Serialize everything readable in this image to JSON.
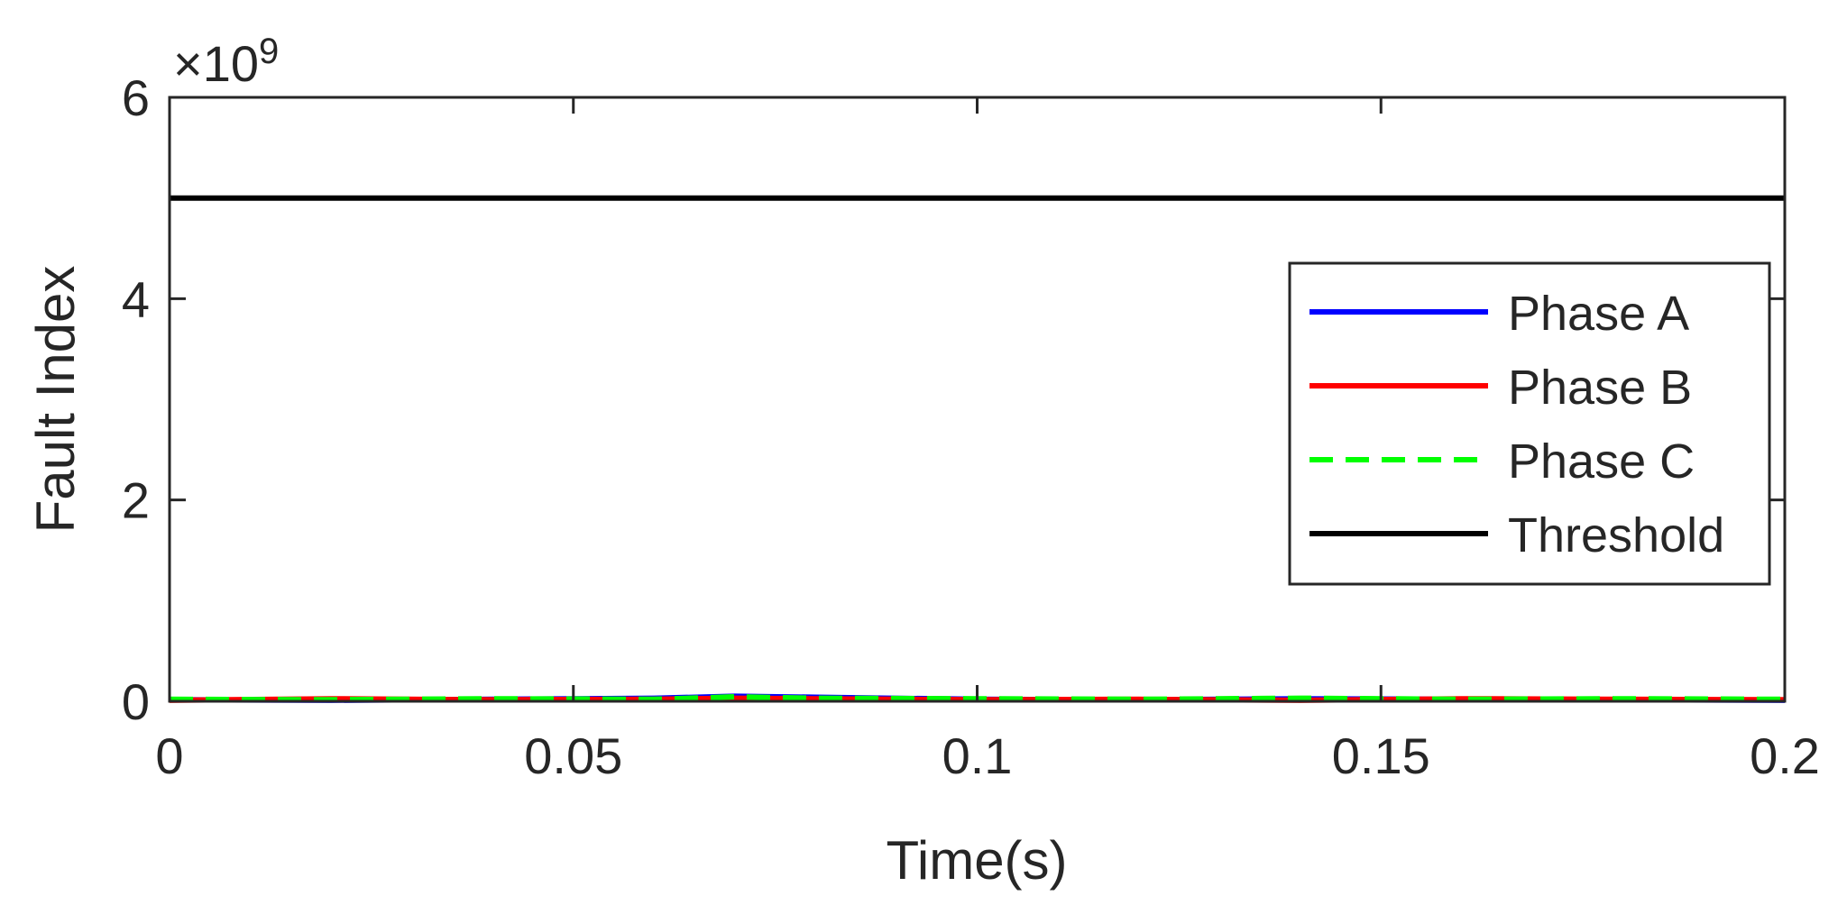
{
  "chart_data": {
    "type": "line",
    "xlabel": "Time(s)",
    "ylabel": "Fault Index",
    "xlim": [
      0,
      0.2
    ],
    "ylim": [
      0,
      6000000000
    ],
    "y_exponent_label": "×10",
    "y_exponent_power": "9",
    "x_ticks": [
      0,
      0.05,
      0.1,
      0.15,
      0.2
    ],
    "x_tick_labels": [
      "0",
      "0.05",
      "0.1",
      "0.15",
      "0.2"
    ],
    "y_ticks": [
      0,
      2000000000,
      4000000000,
      6000000000
    ],
    "y_tick_labels": [
      "0",
      "2",
      "4",
      "6"
    ],
    "grid": false,
    "legend_position": "right-middle",
    "series": [
      {
        "name": "Phase A",
        "color": "#0000ff",
        "style": "solid",
        "x": [
          0,
          0.02,
          0.04,
          0.06,
          0.07,
          0.08,
          0.1,
          0.12,
          0.14,
          0.16,
          0.18,
          0.2
        ],
        "y": [
          15000000,
          10000000,
          20000000,
          30000000,
          50000000,
          40000000,
          20000000,
          15000000,
          25000000,
          20000000,
          15000000,
          10000000
        ]
      },
      {
        "name": "Phase B",
        "color": "#ff0000",
        "style": "solid",
        "x": [
          0,
          0.02,
          0.04,
          0.06,
          0.07,
          0.08,
          0.1,
          0.12,
          0.14,
          0.16,
          0.18,
          0.2
        ],
        "y": [
          10000000,
          25000000,
          15000000,
          20000000,
          30000000,
          25000000,
          15000000,
          20000000,
          10000000,
          25000000,
          20000000,
          15000000
        ]
      },
      {
        "name": "Phase C",
        "color": "#00ff00",
        "style": "dashed",
        "x": [
          0,
          0.02,
          0.04,
          0.06,
          0.07,
          0.08,
          0.1,
          0.12,
          0.14,
          0.16,
          0.18,
          0.2
        ],
        "y": [
          20000000,
          15000000,
          25000000,
          20000000,
          45000000,
          30000000,
          25000000,
          20000000,
          30000000,
          20000000,
          25000000,
          20000000
        ]
      },
      {
        "name": "Threshold",
        "color": "#000000",
        "style": "solid",
        "x": [
          0,
          0.2
        ],
        "y": [
          5000000000,
          5000000000
        ]
      }
    ]
  }
}
